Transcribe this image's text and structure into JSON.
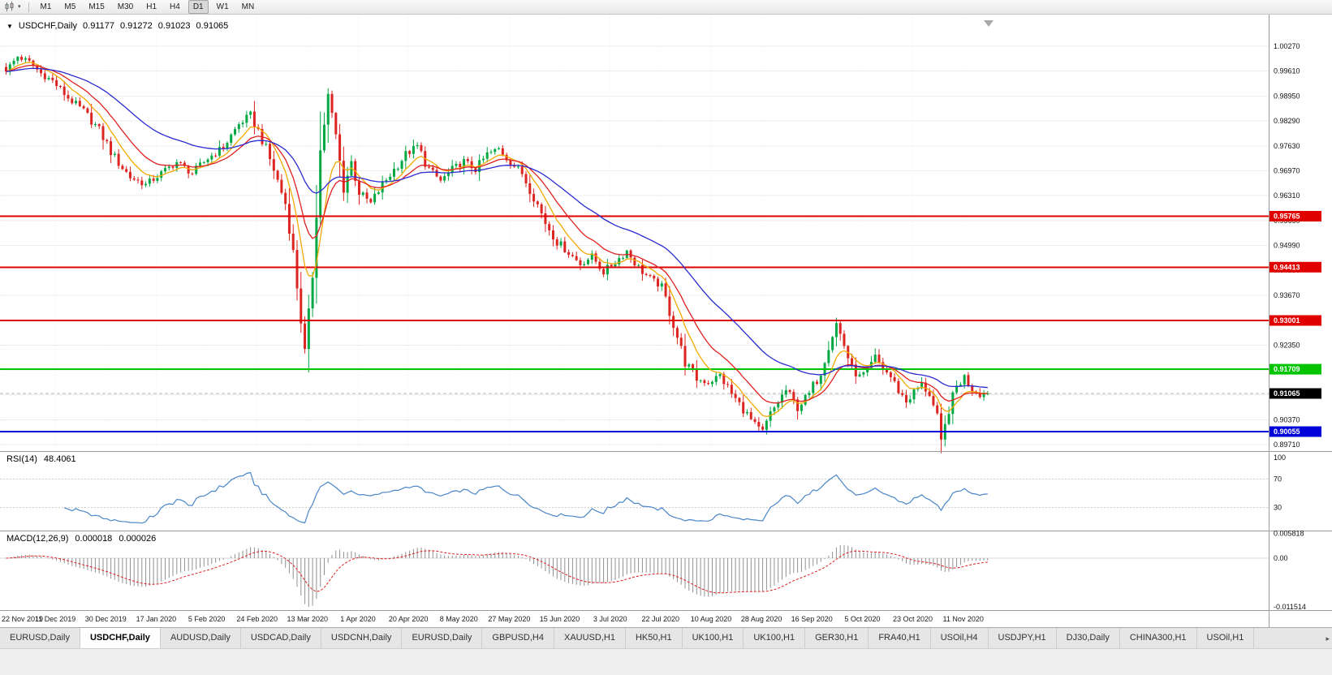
{
  "colors": {
    "up_candle": "#00a843",
    "down_candle": "#dc2420",
    "ma_fast": "#f2a900",
    "ma_mid": "#e02020",
    "ma_slow": "#2a2ad0",
    "rsi_line": "#4a86c8",
    "macd_histogram": "#909090",
    "macd_signal": "#e02020",
    "grid": "#ececec",
    "axis_text": "#111111"
  },
  "icons": {
    "symbol_marker": "▼",
    "toolbar_caret": "▾",
    "tab_scroll_right": "▸"
  },
  "toolbar": {
    "timeframes": [
      {
        "label": "M1",
        "active": false
      },
      {
        "label": "M5",
        "active": false
      },
      {
        "label": "M15",
        "active": false
      },
      {
        "label": "M30",
        "active": false
      },
      {
        "label": "H1",
        "active": false
      },
      {
        "label": "H4",
        "active": false
      },
      {
        "label": "D1",
        "active": true
      },
      {
        "label": "W1",
        "active": false
      },
      {
        "label": "MN",
        "active": false
      }
    ]
  },
  "chart": {
    "symbol_label": "USDCHF,Daily",
    "open": "0.91177",
    "high": "0.91272",
    "low": "0.91023",
    "close_display": "0.91065",
    "price_axis_labels": [
      "1.00270",
      "0.99610",
      "0.98950",
      "0.98290",
      "0.97630",
      "0.96970",
      "0.96310",
      "0.95650",
      "0.94990",
      "0.94330",
      "0.93670",
      "0.93010",
      "0.92350",
      "0.91690",
      "0.91030",
      "0.90370",
      "0.89710"
    ],
    "hlines": [
      {
        "label": "0.95765",
        "price": 0.95765,
        "color": "#e00000"
      },
      {
        "label": "0.94413",
        "price": 0.94413,
        "color": "#e00000"
      },
      {
        "label": "0.93001",
        "price": 0.93001,
        "color": "#e00000"
      },
      {
        "label": "0.91709",
        "price": 0.91709,
        "color": "#00c400"
      },
      {
        "label": "0.90055",
        "price": 0.90055,
        "color": "#0000d8"
      }
    ],
    "bid_box": {
      "label": "0.91065",
      "price": 0.91065,
      "color": "#000000"
    },
    "date_labels": [
      "22 Nov 2019",
      "11 Dec 2019",
      "30 Dec 2019",
      "17 Jan 2020",
      "5 Feb 2020",
      "24 Feb 2020",
      "13 Mar 2020",
      "1 Apr 2020",
      "20 Apr 2020",
      "8 May 2020",
      "27 May 2020",
      "15 Jun 2020",
      "3 Jul 2020",
      "22 Jul 2020",
      "10 Aug 2020",
      "28 Aug 2020",
      "16 Sep 2020",
      "5 Oct 2020",
      "23 Oct 2020",
      "11 Nov 2020"
    ]
  },
  "rsi": {
    "name": "RSI(14)",
    "value": "48.4061",
    "axis_labels": [
      "100",
      "70",
      "30"
    ]
  },
  "macd": {
    "name": "MACD(12,26,9)",
    "value_macd": "0.000018",
    "value_signal": "0.000026",
    "axis_labels": [
      "0.005818",
      "0.00",
      "-0.011514"
    ]
  },
  "tabs": [
    {
      "label": "EURUSD,Daily",
      "active": false
    },
    {
      "label": "USDCHF,Daily",
      "active": true
    },
    {
      "label": "AUDUSD,Daily",
      "active": false
    },
    {
      "label": "USDCAD,Daily",
      "active": false
    },
    {
      "label": "USDCNH,Daily",
      "active": false
    },
    {
      "label": "EURUSD,Daily",
      "active": false
    },
    {
      "label": "GBPUSD,H4",
      "active": false
    },
    {
      "label": "XAUUSD,H1",
      "active": false
    },
    {
      "label": "HK50,H1",
      "active": false
    },
    {
      "label": "UK100,H1",
      "active": false
    },
    {
      "label": "UK100,H1",
      "active": false
    },
    {
      "label": "GER30,H1",
      "active": false
    },
    {
      "label": "FRA40,H1",
      "active": false
    },
    {
      "label": "USOil,H4",
      "active": false
    },
    {
      "label": "USDJPY,H1",
      "active": false
    },
    {
      "label": "DJ30,Daily",
      "active": false
    },
    {
      "label": "CHINA300,H1",
      "active": false
    },
    {
      "label": "USOil,H1",
      "active": false
    }
  ],
  "chart_data": {
    "type": "candlestick",
    "symbol": "USDCHF",
    "timeframe": "Daily",
    "quote": {
      "open": 0.91177,
      "high": 0.91272,
      "low": 0.91023,
      "close": 0.91065
    },
    "price_axis": {
      "top": 1.0027,
      "bottom": 0.8971
    },
    "horizontal_levels": [
      0.95765,
      0.94413,
      0.93001,
      0.91709,
      0.90055
    ],
    "candle_count": 254,
    "candles_per_date_tick": 13,
    "candle_spacing": 4.78,
    "close_path_anchors": [
      [
        0,
        0.996
      ],
      [
        3,
        1.0
      ],
      [
        6,
        0.9985
      ],
      [
        9,
        0.9955
      ],
      [
        12,
        0.9935
      ],
      [
        16,
        0.989
      ],
      [
        20,
        0.9855
      ],
      [
        24,
        0.9805
      ],
      [
        28,
        0.973
      ],
      [
        32,
        0.968
      ],
      [
        36,
        0.966
      ],
      [
        40,
        0.969
      ],
      [
        44,
        0.972
      ],
      [
        48,
        0.969
      ],
      [
        52,
        0.973
      ],
      [
        56,
        0.976
      ],
      [
        60,
        0.982
      ],
      [
        63,
        0.9845
      ],
      [
        66,
        0.978
      ],
      [
        69,
        0.97
      ],
      [
        72,
        0.961
      ],
      [
        74,
        0.948
      ],
      [
        76,
        0.93
      ],
      [
        77,
        0.9215
      ],
      [
        79,
        0.942
      ],
      [
        81,
        0.975
      ],
      [
        83,
        0.9895
      ],
      [
        85,
        0.979
      ],
      [
        87,
        0.965
      ],
      [
        89,
        0.972
      ],
      [
        91,
        0.964
      ],
      [
        94,
        0.961
      ],
      [
        97,
        0.966
      ],
      [
        100,
        0.97
      ],
      [
        103,
        0.974
      ],
      [
        106,
        0.9762
      ],
      [
        109,
        0.97
      ],
      [
        112,
        0.967
      ],
      [
        115,
        0.97
      ],
      [
        118,
        0.9722
      ],
      [
        121,
        0.97
      ],
      [
        124,
        0.974
      ],
      [
        127,
        0.9755
      ],
      [
        130,
        0.972
      ],
      [
        133,
        0.969
      ],
      [
        136,
        0.963
      ],
      [
        139,
        0.956
      ],
      [
        142,
        0.951
      ],
      [
        145,
        0.948
      ],
      [
        148,
        0.945
      ],
      [
        151,
        0.947
      ],
      [
        154,
        0.943
      ],
      [
        157,
        0.9455
      ],
      [
        160,
        0.9485
      ],
      [
        163,
        0.944
      ],
      [
        166,
        0.941
      ],
      [
        169,
        0.939
      ],
      [
        172,
        0.929
      ],
      [
        175,
        0.919
      ],
      [
        178,
        0.9145
      ],
      [
        181,
        0.9135
      ],
      [
        184,
        0.9155
      ],
      [
        187,
        0.9105
      ],
      [
        190,
        0.9065
      ],
      [
        193,
        0.902
      ],
      [
        195,
        0.9005
      ],
      [
        197,
        0.905
      ],
      [
        199,
        0.9085
      ],
      [
        201,
        0.9115
      ],
      [
        204,
        0.907
      ],
      [
        207,
        0.9105
      ],
      [
        210,
        0.9165
      ],
      [
        212,
        0.9235
      ],
      [
        214,
        0.9292
      ],
      [
        216,
        0.9235
      ],
      [
        218,
        0.917
      ],
      [
        220,
        0.915
      ],
      [
        222,
        0.9165
      ],
      [
        224,
        0.92
      ],
      [
        226,
        0.9175
      ],
      [
        228,
        0.915
      ],
      [
        230,
        0.9115
      ],
      [
        232,
        0.9085
      ],
      [
        234,
        0.911
      ],
      [
        236,
        0.913
      ],
      [
        238,
        0.9105
      ],
      [
        240,
        0.904
      ],
      [
        241,
        0.8972
      ],
      [
        243,
        0.9065
      ],
      [
        245,
        0.9125
      ],
      [
        247,
        0.915
      ],
      [
        249,
        0.912
      ],
      [
        251,
        0.9105
      ],
      [
        253,
        0.9107
      ]
    ],
    "moving_averages": [
      {
        "period": 8,
        "color_key": "ma_fast"
      },
      {
        "period": 16,
        "color_key": "ma_mid"
      },
      {
        "period": 40,
        "color_key": "ma_slow"
      }
    ],
    "rsi": {
      "period": 14,
      "levels": [
        70,
        30
      ],
      "range": [
        0,
        100
      ],
      "last_value": 48.4061
    },
    "macd": {
      "fast": 12,
      "slow": 26,
      "signal": 9,
      "axis_max": 0.005818,
      "axis_min": -0.011514,
      "last_macd": 1.8e-05,
      "last_signal": 2.6e-05
    }
  }
}
